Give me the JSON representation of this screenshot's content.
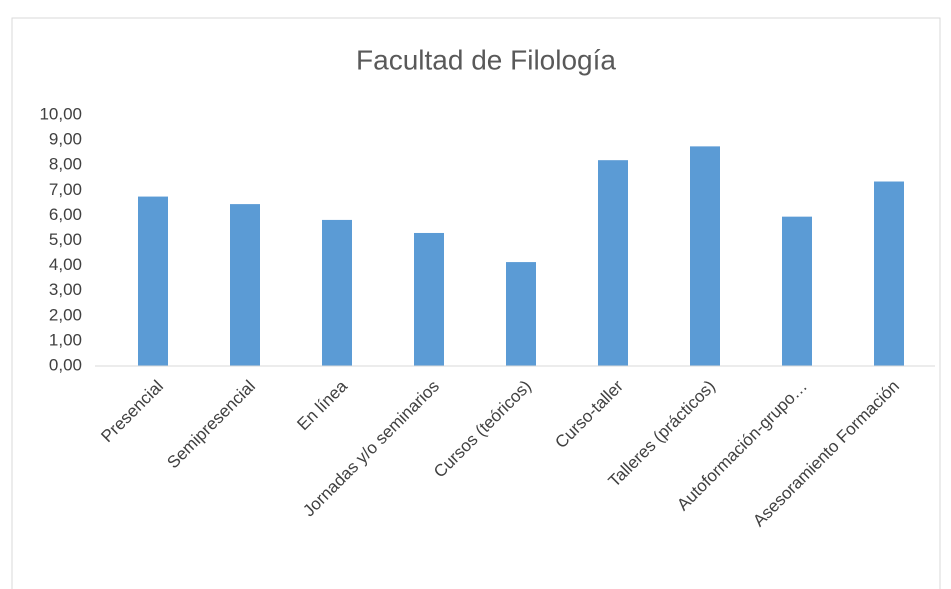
{
  "chart_data": {
    "type": "bar",
    "title": "Facultad de Filología",
    "categories": [
      "Presencial",
      "Semipresencial",
      "En línea",
      "Jornadas y/o seminarios",
      "Cursos (teóricos)",
      "Curso-taller",
      "Talleres (prácticos)",
      "Autoformación-grupo…",
      "Asesoramiento Formación"
    ],
    "values": [
      6.75,
      6.45,
      5.82,
      5.3,
      4.14,
      8.2,
      8.75,
      5.95,
      7.35
    ],
    "color": "#5b9bd5",
    "ylim": [
      0,
      10
    ],
    "yticks": [
      {
        "value": 0,
        "label": "0,00"
      },
      {
        "value": 1,
        "label": "1,00"
      },
      {
        "value": 2,
        "label": "2,00"
      },
      {
        "value": 3,
        "label": "3,00"
      },
      {
        "value": 4,
        "label": "4,00"
      },
      {
        "value": 5,
        "label": "5,00"
      },
      {
        "value": 6,
        "label": "6,00"
      },
      {
        "value": 7,
        "label": "7,00"
      },
      {
        "value": 8,
        "label": "8,00"
      },
      {
        "value": 9,
        "label": "9,00"
      },
      {
        "value": 10,
        "label": "10,00"
      }
    ],
    "grid": false
  }
}
